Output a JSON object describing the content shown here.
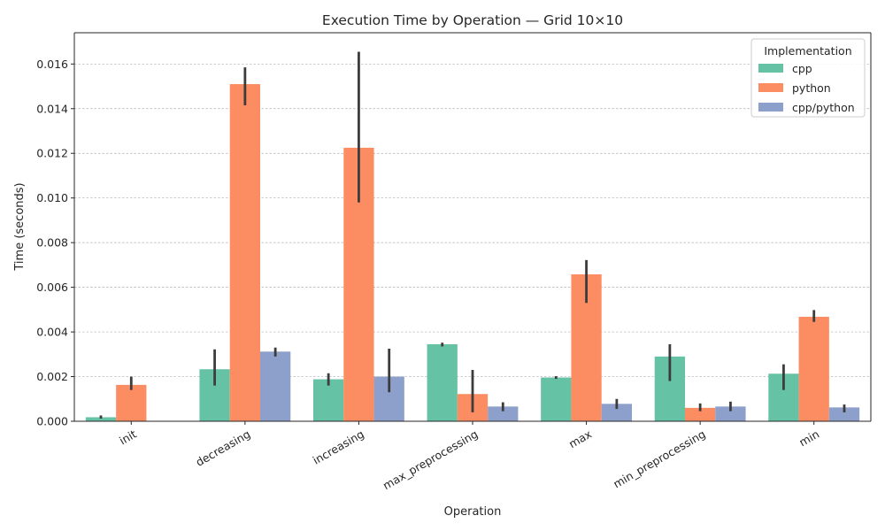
{
  "chart_data": {
    "type": "bar",
    "title": "Execution Time by Operation — Grid 10×10",
    "xlabel": "Operation",
    "ylabel": "Time (seconds)",
    "ylim": [
      0,
      0.0174
    ],
    "yticks": [
      0.0,
      0.002,
      0.004,
      0.006,
      0.008,
      0.01,
      0.012,
      0.014,
      0.016
    ],
    "ytick_labels": [
      "0.000",
      "0.002",
      "0.004",
      "0.006",
      "0.008",
      "0.010",
      "0.012",
      "0.014",
      "0.016"
    ],
    "grid": "horizontal dashed",
    "legend_placement": "top-right",
    "legend_title": "Implementation",
    "categories": [
      "init",
      "decreasing",
      "increasing",
      "max_preprocessing",
      "max",
      "min_preprocessing",
      "min"
    ],
    "series": [
      {
        "name": "cpp",
        "color": "#66c2a5",
        "values": [
          0.00018,
          0.00233,
          0.00188,
          0.00345,
          0.00196,
          0.0029,
          0.00213
        ],
        "err_low": [
          0.00012,
          0.0016,
          0.0016,
          0.00335,
          0.0019,
          0.0018,
          0.0014
        ],
        "err_high": [
          0.00026,
          0.00322,
          0.00215,
          0.00352,
          0.00202,
          0.00345,
          0.00255
        ]
      },
      {
        "name": "python",
        "color": "#fc8d62",
        "values": [
          0.00163,
          0.0151,
          0.01225,
          0.00122,
          0.00658,
          0.0006,
          0.00468
        ],
        "err_low": [
          0.0014,
          0.01415,
          0.0098,
          0.0004,
          0.0053,
          0.00045,
          0.00445
        ],
        "err_high": [
          0.002,
          0.01585,
          0.01655,
          0.0023,
          0.00722,
          0.0008,
          0.00498
        ]
      },
      {
        "name": "cpp/python",
        "color": "#8da0cb",
        "values": [
          null,
          0.00312,
          0.002,
          0.00066,
          0.00078,
          0.00066,
          0.00062
        ],
        "err_low": [
          null,
          0.0029,
          0.0013,
          0.00045,
          0.00055,
          0.00045,
          0.0004
        ],
        "err_high": [
          null,
          0.0033,
          0.00325,
          0.00085,
          0.001,
          0.00088,
          0.00075
        ]
      }
    ]
  }
}
